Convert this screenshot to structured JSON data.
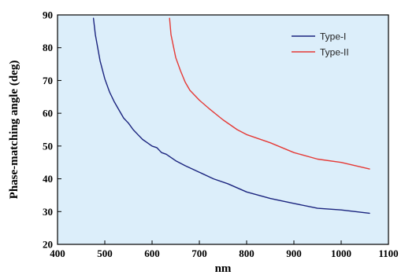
{
  "chart_data": {
    "type": "line",
    "title": "",
    "xlabel": "nm",
    "ylabel": "Phase-matching angle (deg)",
    "xlim": [
      400,
      1100
    ],
    "ylim": [
      20,
      90
    ],
    "xticks": [
      400,
      500,
      600,
      700,
      800,
      900,
      1000,
      1100
    ],
    "yticks": [
      20,
      30,
      40,
      50,
      60,
      70,
      80,
      90
    ],
    "grid": false,
    "legend_position": "top-right",
    "background_color": "#dceefa",
    "series": [
      {
        "name": "Type-I",
        "color": "#1a237e",
        "x": [
          476,
          480,
          490,
          500,
          510,
          520,
          530,
          540,
          550,
          560,
          570,
          580,
          590,
          600,
          610,
          620,
          630,
          650,
          670,
          700,
          730,
          760,
          800,
          850,
          900,
          950,
          1000,
          1060
        ],
        "y": [
          89,
          84,
          76,
          70.5,
          66.5,
          63.5,
          61,
          58.5,
          57,
          55,
          53.5,
          52,
          51,
          50,
          49.5,
          48,
          47.5,
          45.5,
          44,
          42,
          40,
          38.5,
          36,
          34,
          32.5,
          31,
          30.5,
          29.5
        ]
      },
      {
        "name": "Type-II",
        "color": "#e53935",
        "x": [
          637,
          640,
          650,
          660,
          670,
          680,
          700,
          720,
          750,
          780,
          800,
          850,
          900,
          950,
          1000,
          1060
        ],
        "y": [
          89,
          84,
          77,
          73,
          69.5,
          67,
          64,
          61.5,
          58,
          55,
          53.5,
          51,
          48,
          46,
          45,
          43
        ]
      }
    ]
  }
}
